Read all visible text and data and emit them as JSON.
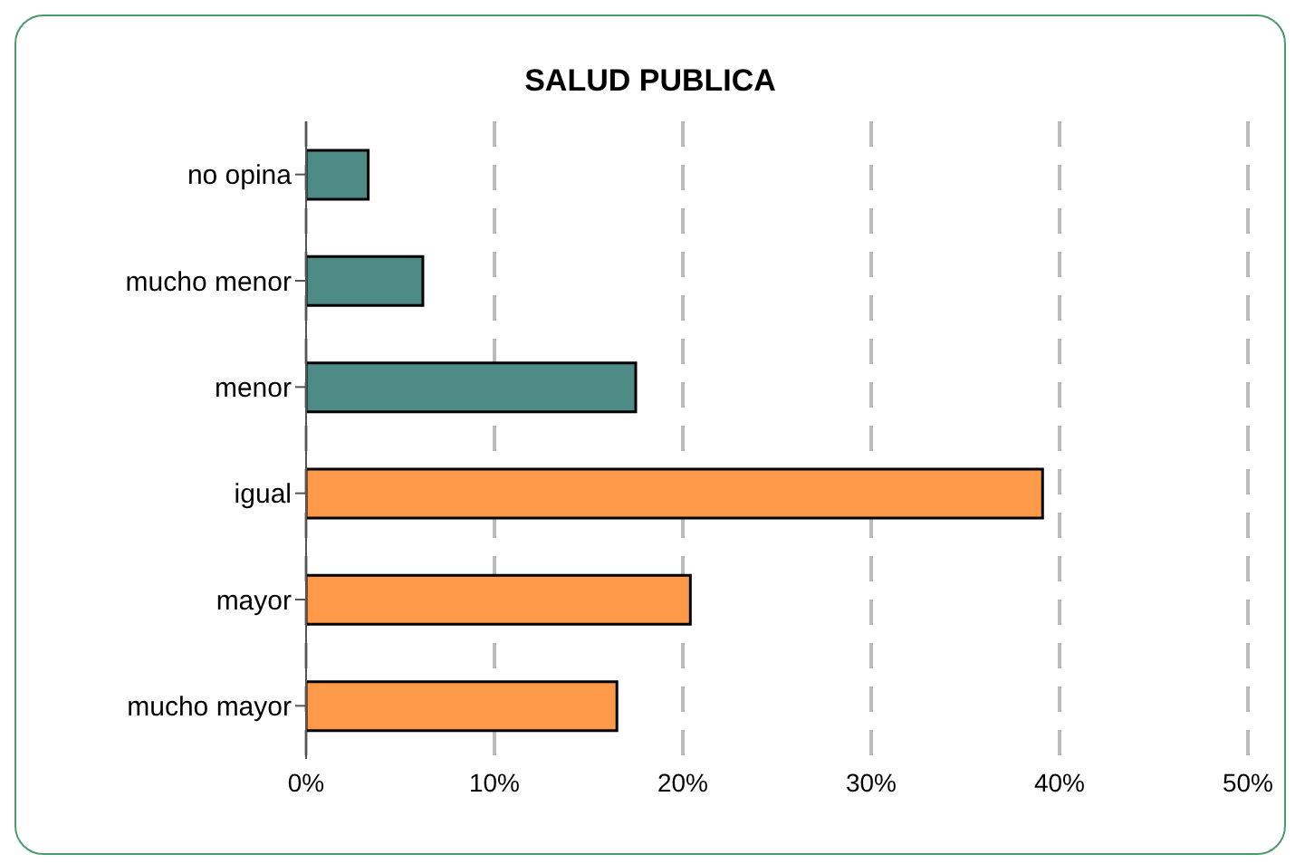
{
  "chart_data": {
    "type": "bar",
    "orientation": "horizontal",
    "title": "SALUD PUBLICA",
    "categories": [
      "no opina",
      "mucho menor",
      "menor",
      "igual",
      "mayor",
      "mucho mayor"
    ],
    "values": [
      3.3,
      6.2,
      17.5,
      39.1,
      20.4,
      16.5
    ],
    "colors": [
      "#4e8a86",
      "#4e8a86",
      "#4e8a86",
      "#ff9a4a",
      "#ff9a4a",
      "#ff9a4a"
    ],
    "xlim": [
      0,
      50
    ],
    "xticks": [
      {
        "value": 0,
        "label": "0%"
      },
      {
        "value": 10,
        "label": "10%"
      },
      {
        "value": 20,
        "label": "20%"
      },
      {
        "value": 30,
        "label": "30%"
      },
      {
        "value": 40,
        "label": "40%"
      },
      {
        "value": 50,
        "label": "50%"
      }
    ],
    "grid": "x",
    "line_style": "dashed"
  }
}
